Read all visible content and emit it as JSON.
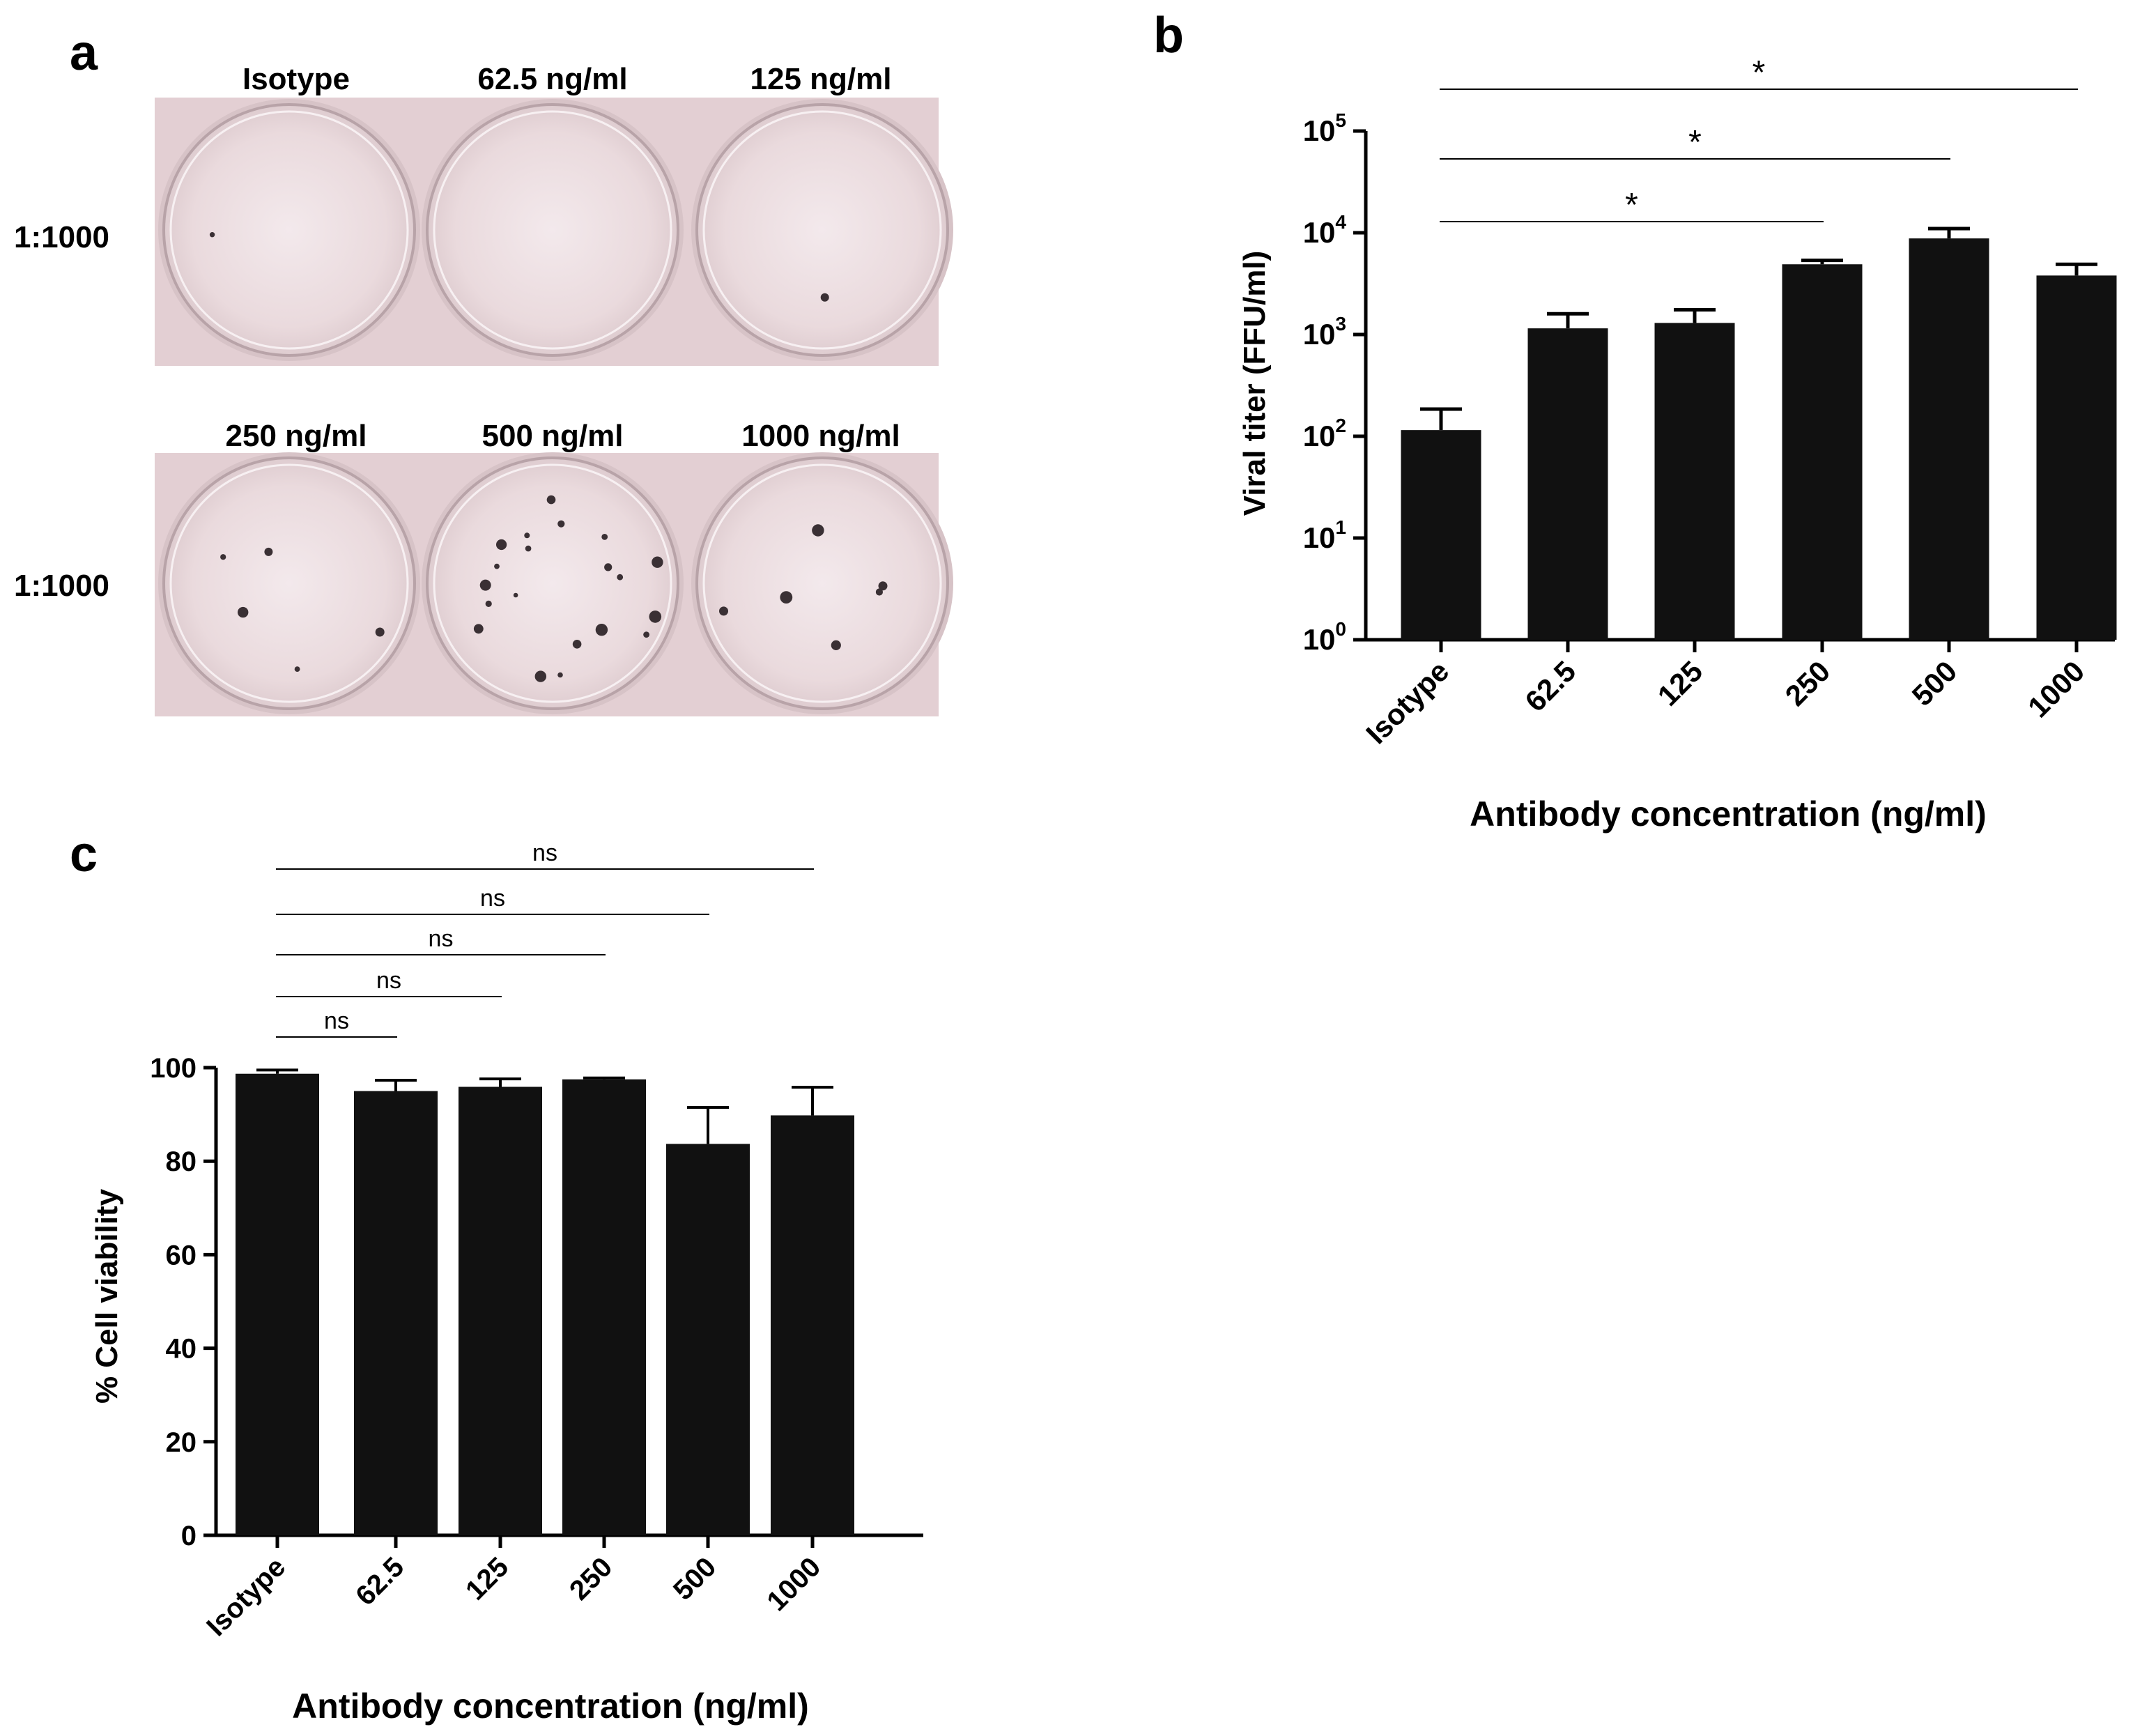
{
  "panel_labels": {
    "a": "a",
    "b": "b",
    "c": "c"
  },
  "panel_a": {
    "wells": [
      {
        "label": "Isotype",
        "dilution": "1:1000",
        "foci": 1
      },
      {
        "label": "62.5 ng/ml",
        "dilution": "1:1000",
        "foci": 0
      },
      {
        "label": "125 ng/ml",
        "dilution": "1:1000",
        "foci": 1
      },
      {
        "label": "250 ng/ml",
        "dilution": "1:1000",
        "foci": 5
      },
      {
        "label": "500 ng/ml",
        "dilution": "1:1000",
        "foci": 20
      },
      {
        "label": "1000 ng/ml",
        "dilution": "1:1000",
        "foci": 6
      }
    ],
    "row_labels": [
      "1:1000",
      "1:1000"
    ]
  },
  "chart_data": [
    {
      "panel": "b",
      "type": "bar",
      "scale": "log",
      "categories": [
        "Isotype",
        "62.5",
        "125",
        "250",
        "500",
        "1000"
      ],
      "values": [
        115,
        1150,
        1300,
        4900,
        8800,
        3800
      ],
      "errors_upper": [
        185,
        1600,
        1750,
        5350,
        11000,
        4900
      ],
      "xlabel": "Antibody concentration (ng/ml)",
      "ylabel": "Viral titer (FFU/ml)",
      "ylim": [
        1,
        100000
      ],
      "yticks": [
        {
          "base": "10",
          "exp": "0"
        },
        {
          "base": "10",
          "exp": "1"
        },
        {
          "base": "10",
          "exp": "2"
        },
        {
          "base": "10",
          "exp": "3"
        },
        {
          "base": "10",
          "exp": "4"
        },
        {
          "base": "10",
          "exp": "5"
        }
      ],
      "significance": [
        {
          "from": 0,
          "to": 3,
          "label": "*"
        },
        {
          "from": 0,
          "to": 4,
          "label": "*"
        },
        {
          "from": 0,
          "to": 5,
          "label": "*"
        }
      ]
    },
    {
      "panel": "c",
      "type": "bar",
      "scale": "linear",
      "categories": [
        "Isotype",
        "62.5",
        "125",
        "250",
        "500",
        "1000"
      ],
      "values": [
        98.7,
        95.0,
        95.9,
        97.5,
        83.7,
        89.8
      ],
      "errors_upper": [
        99.5,
        97.3,
        97.6,
        97.8,
        91.5,
        95.8
      ],
      "xlabel": "Antibody concentration (ng/ml)",
      "ylabel": "% Cell viability",
      "ylim": [
        0,
        100
      ],
      "yticks": [
        "0",
        "20",
        "40",
        "60",
        "80",
        "100"
      ],
      "significance": [
        {
          "from": 0,
          "to": 1,
          "label": "ns"
        },
        {
          "from": 0,
          "to": 2,
          "label": "ns"
        },
        {
          "from": 0,
          "to": 3,
          "label": "ns"
        },
        {
          "from": 0,
          "to": 4,
          "label": "ns"
        },
        {
          "from": 0,
          "to": 5,
          "label": "ns"
        }
      ]
    }
  ]
}
